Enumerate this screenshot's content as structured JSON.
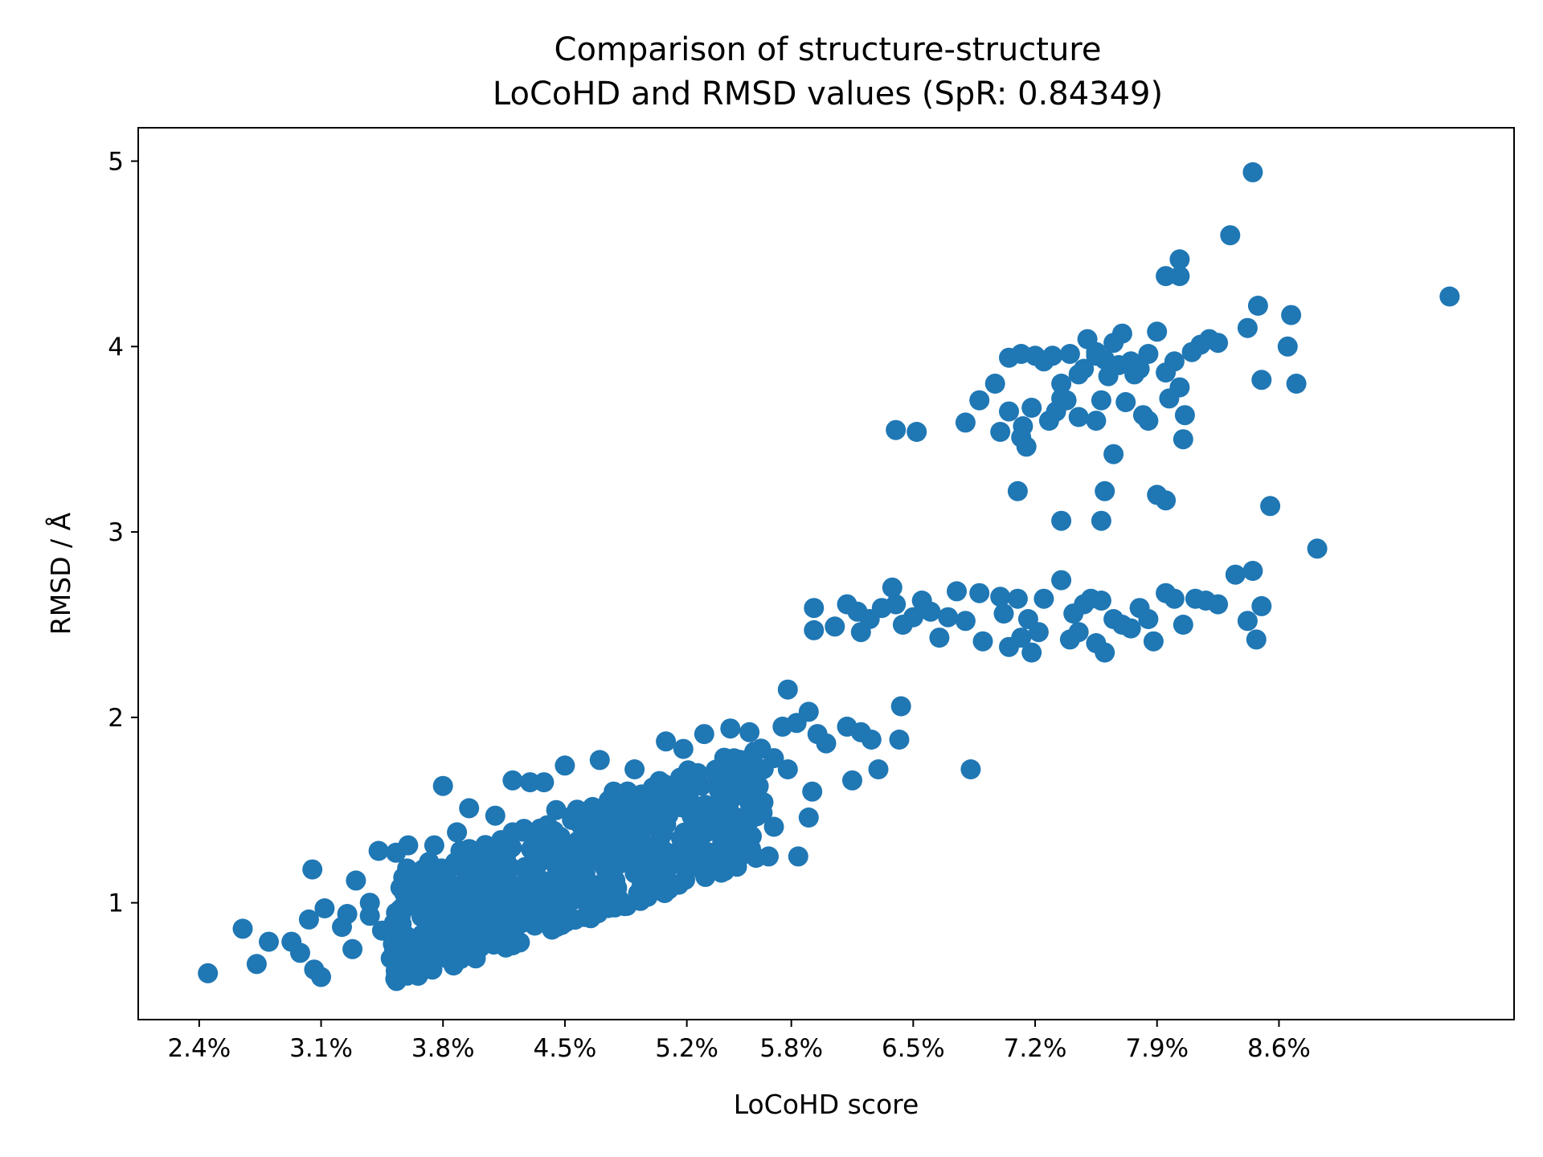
{
  "chart_data": {
    "type": "scatter",
    "title": "Comparison of structure-structure\nLoCoHD and RMSD values (SpR: 0.84349)",
    "xlabel": "LoCoHD score",
    "ylabel": "RMSD / Å",
    "xlim": [
      0.0205,
      0.0995
    ],
    "ylim": [
      0.37,
      5.18
    ],
    "xticks": [
      0.024,
      0.031,
      0.038,
      0.045,
      0.052,
      0.058,
      0.065,
      0.072,
      0.079,
      0.086
    ],
    "xtick_labels": [
      "2.4%",
      "3.1%",
      "3.8%",
      "4.5%",
      "5.2%",
      "5.8%",
      "6.5%",
      "7.2%",
      "7.9%",
      "8.6%"
    ],
    "yticks": [
      1,
      2,
      3,
      4,
      5
    ],
    "ytick_labels": [
      "1",
      "2",
      "3",
      "4",
      "5"
    ],
    "grid": false,
    "color": "#1f77b4",
    "cluster_points": [
      [
        0.0245,
        0.62
      ],
      [
        0.0265,
        0.86
      ],
      [
        0.0273,
        0.67
      ],
      [
        0.028,
        0.79
      ],
      [
        0.0293,
        0.79
      ],
      [
        0.0298,
        0.73
      ],
      [
        0.0303,
        0.91
      ],
      [
        0.0306,
        0.64
      ],
      [
        0.0305,
        1.18
      ],
      [
        0.031,
        0.6
      ],
      [
        0.0312,
        0.97
      ],
      [
        0.0325,
        0.94
      ],
      [
        0.0328,
        0.75
      ],
      [
        0.033,
        1.12
      ],
      [
        0.0338,
        1.0
      ],
      [
        0.0343,
        1.28
      ],
      [
        0.035,
        0.7
      ],
      [
        0.0353,
        1.27
      ],
      [
        0.0358,
        0.66
      ],
      [
        0.036,
        1.31
      ],
      [
        0.0375,
        1.31
      ],
      [
        0.038,
        1.63
      ],
      [
        0.0388,
        1.38
      ],
      [
        0.0395,
        1.51
      ],
      [
        0.041,
        1.47
      ],
      [
        0.042,
        1.66
      ],
      [
        0.043,
        1.65
      ],
      [
        0.0438,
        1.65
      ],
      [
        0.045,
        1.74
      ],
      [
        0.047,
        1.77
      ],
      [
        0.049,
        1.72
      ],
      [
        0.0508,
        1.87
      ],
      [
        0.0518,
        1.83
      ],
      [
        0.053,
        1.91
      ],
      [
        0.0545,
        1.94
      ],
      [
        0.0556,
        1.92
      ],
      [
        0.057,
        1.78
      ],
      [
        0.0578,
        1.72
      ],
      [
        0.0578,
        2.15
      ],
      [
        0.0575,
        1.95
      ],
      [
        0.0583,
        1.97
      ],
      [
        0.059,
        2.03
      ],
      [
        0.0595,
        1.91
      ],
      [
        0.06,
        1.86
      ],
      [
        0.0592,
        1.6
      ],
      [
        0.059,
        1.46
      ],
      [
        0.0584,
        1.25
      ],
      [
        0.0567,
        1.25
      ],
      [
        0.055,
        1.34
      ],
      [
        0.053,
        1.16
      ],
      [
        0.0512,
        1.1
      ],
      [
        0.0503,
        1.1
      ],
      [
        0.048,
        1.08
      ],
      [
        0.0465,
        0.98
      ],
      [
        0.045,
        0.95
      ],
      [
        0.044,
        0.89
      ],
      [
        0.0425,
        0.89
      ],
      [
        0.0405,
        0.82
      ],
      [
        0.0395,
        0.8
      ],
      [
        0.038,
        0.79
      ],
      [
        0.0365,
        0.8
      ],
      [
        0.0355,
        0.75
      ],
      [
        0.0345,
        0.85
      ],
      [
        0.0322,
        0.87
      ],
      [
        0.0338,
        0.93
      ],
      [
        0.0372,
        1.22
      ],
      [
        0.039,
        1.28
      ],
      [
        0.04,
        1.19
      ],
      [
        0.042,
        1.38
      ],
      [
        0.0432,
        1.27
      ],
      [
        0.0445,
        1.5
      ],
      [
        0.046,
        1.42
      ],
      [
        0.0478,
        1.6
      ],
      [
        0.0495,
        1.54
      ],
      [
        0.0505,
        1.6
      ],
      [
        0.052,
        1.56
      ],
      [
        0.0538,
        1.7
      ],
      [
        0.055,
        1.58
      ],
      [
        0.0563,
        1.5
      ],
      [
        0.057,
        1.41
      ],
      [
        0.0612,
        1.95
      ],
      [
        0.0615,
        1.66
      ],
      [
        0.062,
        1.92
      ],
      [
        0.0626,
        1.88
      ],
      [
        0.063,
        1.72
      ],
      [
        0.0642,
        1.88
      ],
      [
        0.0643,
        2.06
      ],
      [
        0.0683,
        1.72
      ]
    ],
    "points": [
      [
        0.0593,
        2.59
      ],
      [
        0.0593,
        2.47
      ],
      [
        0.0605,
        2.49
      ],
      [
        0.0612,
        2.61
      ],
      [
        0.0618,
        2.57
      ],
      [
        0.062,
        2.46
      ],
      [
        0.0625,
        2.53
      ],
      [
        0.0632,
        2.59
      ],
      [
        0.0638,
        2.7
      ],
      [
        0.064,
        2.61
      ],
      [
        0.0644,
        2.5
      ],
      [
        0.065,
        2.54
      ],
      [
        0.0655,
        2.63
      ],
      [
        0.066,
        2.57
      ],
      [
        0.0665,
        2.43
      ],
      [
        0.067,
        2.54
      ],
      [
        0.0675,
        2.68
      ],
      [
        0.068,
        2.52
      ],
      [
        0.0688,
        2.67
      ],
      [
        0.069,
        2.41
      ],
      [
        0.07,
        2.65
      ],
      [
        0.0702,
        2.56
      ],
      [
        0.0705,
        2.38
      ],
      [
        0.071,
        2.64
      ],
      [
        0.0712,
        2.43
      ],
      [
        0.0716,
        2.53
      ],
      [
        0.0718,
        2.35
      ],
      [
        0.0722,
        2.46
      ],
      [
        0.0725,
        2.64
      ],
      [
        0.0735,
        2.74
      ],
      [
        0.074,
        2.42
      ],
      [
        0.0742,
        2.56
      ],
      [
        0.0745,
        2.46
      ],
      [
        0.0748,
        2.61
      ],
      [
        0.0752,
        2.64
      ],
      [
        0.0755,
        2.4
      ],
      [
        0.0758,
        2.63
      ],
      [
        0.076,
        2.35
      ],
      [
        0.0765,
        2.53
      ],
      [
        0.077,
        2.5
      ],
      [
        0.0775,
        2.48
      ],
      [
        0.078,
        2.59
      ],
      [
        0.0785,
        2.53
      ],
      [
        0.0788,
        2.41
      ],
      [
        0.0795,
        2.67
      ],
      [
        0.08,
        2.64
      ],
      [
        0.0805,
        2.5
      ],
      [
        0.0812,
        2.64
      ],
      [
        0.0818,
        2.63
      ],
      [
        0.0825,
        2.61
      ],
      [
        0.0835,
        2.77
      ],
      [
        0.0842,
        2.52
      ],
      [
        0.0845,
        2.79
      ],
      [
        0.0847,
        2.42
      ],
      [
        0.085,
        2.6
      ],
      [
        0.0832,
        4.6
      ],
      [
        0.0842,
        4.1
      ],
      [
        0.0845,
        4.94
      ],
      [
        0.0848,
        4.22
      ],
      [
        0.085,
        3.82
      ],
      [
        0.0865,
        4.0
      ],
      [
        0.0867,
        4.17
      ],
      [
        0.087,
        3.8
      ],
      [
        0.0882,
        2.91
      ],
      [
        0.0855,
        3.14
      ],
      [
        0.0958,
        4.27
      ],
      [
        0.0795,
        4.38
      ],
      [
        0.0803,
        4.47
      ],
      [
        0.0803,
        4.38
      ],
      [
        0.082,
        4.04
      ],
      [
        0.0825,
        4.02
      ],
      [
        0.0815,
        4.01
      ],
      [
        0.081,
        3.97
      ],
      [
        0.08,
        3.92
      ],
      [
        0.0795,
        3.86
      ],
      [
        0.079,
        4.08
      ],
      [
        0.0785,
        3.96
      ],
      [
        0.078,
        3.88
      ],
      [
        0.0775,
        3.92
      ],
      [
        0.077,
        4.07
      ],
      [
        0.0765,
        4.02
      ],
      [
        0.076,
        3.93
      ],
      [
        0.0755,
        3.97
      ],
      [
        0.075,
        4.04
      ],
      [
        0.0745,
        3.85
      ],
      [
        0.074,
        3.96
      ],
      [
        0.0735,
        3.8
      ],
      [
        0.073,
        3.95
      ],
      [
        0.072,
        3.95
      ],
      [
        0.0712,
        3.96
      ],
      [
        0.0705,
        3.94
      ],
      [
        0.0697,
        3.8
      ],
      [
        0.0705,
        3.65
      ],
      [
        0.0713,
        3.57
      ],
      [
        0.0718,
        3.67
      ],
      [
        0.0728,
        3.6
      ],
      [
        0.0732,
        3.65
      ],
      [
        0.0738,
        3.71
      ],
      [
        0.0745,
        3.62
      ],
      [
        0.0755,
        3.6
      ],
      [
        0.0758,
        3.71
      ],
      [
        0.0765,
        3.42
      ],
      [
        0.0772,
        3.7
      ],
      [
        0.0785,
        3.6
      ],
      [
        0.0797,
        3.72
      ],
      [
        0.0803,
        3.78
      ],
      [
        0.0806,
        3.63
      ],
      [
        0.0805,
        3.5
      ],
      [
        0.0712,
        3.51
      ],
      [
        0.0715,
        3.46
      ],
      [
        0.07,
        3.54
      ],
      [
        0.0688,
        3.71
      ],
      [
        0.068,
        3.59
      ],
      [
        0.071,
        3.22
      ],
      [
        0.076,
        3.22
      ],
      [
        0.079,
        3.2
      ],
      [
        0.0795,
        3.17
      ],
      [
        0.0735,
        3.06
      ],
      [
        0.0758,
        3.06
      ],
      [
        0.064,
        3.55
      ],
      [
        0.0652,
        3.54
      ],
      [
        0.0725,
        3.92
      ],
      [
        0.0735,
        3.72
      ],
      [
        0.0748,
        3.88
      ],
      [
        0.0762,
        3.84
      ],
      [
        0.0777,
        3.85
      ],
      [
        0.0782,
        3.63
      ],
      [
        0.0755,
        3.95
      ],
      [
        0.0768,
        3.9
      ]
    ]
  }
}
